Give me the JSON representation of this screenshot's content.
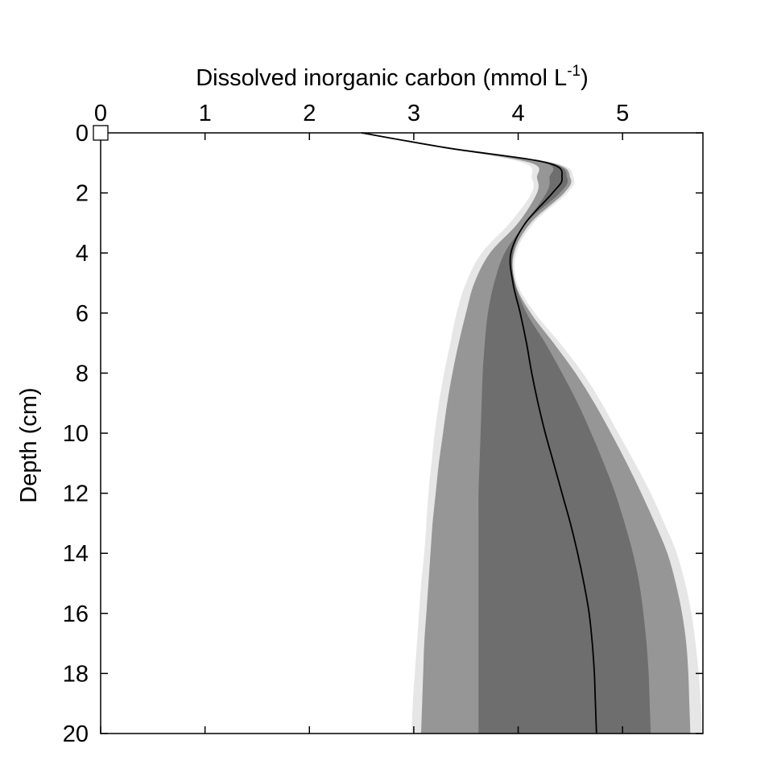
{
  "chart_data": {
    "type": "area",
    "xlabel_main": "Dissolved inorganic carbon  (mmol L",
    "xlabel_sup": "-1",
    "xlabel_close": ")",
    "ylabel": "Depth (cm)",
    "xlim": [
      0,
      5.77
    ],
    "ylim": [
      0,
      20
    ],
    "x_axis_position": "top",
    "y_inverted": true,
    "grid": false,
    "x_ticks": [
      0,
      1,
      2,
      3,
      4,
      5
    ],
    "x_tick_labels": [
      "0",
      "1",
      "2",
      "3",
      "4",
      "5"
    ],
    "y_ticks": [
      0,
      2,
      4,
      6,
      8,
      10,
      12,
      14,
      16,
      18,
      20
    ],
    "y_tick_labels": [
      "0",
      "2",
      "4",
      "6",
      "8",
      "10",
      "12",
      "14",
      "16",
      "18",
      "20"
    ],
    "depth": [
      0,
      0.5,
      1.0,
      1.5,
      2.0,
      3.0,
      4.0,
      5.0,
      6.0,
      7.0,
      8.0,
      9.0,
      10.0,
      11.0,
      12.0,
      13.0,
      14.0,
      15.0,
      16.0,
      17.0,
      18.0,
      19.0,
      20.0
    ],
    "bands": [
      {
        "color": "#e6e6e6",
        "lower": [
          2.48,
          3.3,
          4.05,
          4.13,
          4.13,
          3.92,
          3.65,
          3.5,
          3.41,
          3.35,
          3.29,
          3.24,
          3.2,
          3.17,
          3.14,
          3.12,
          3.1,
          3.07,
          3.05,
          3.03,
          3.01,
          2.99,
          2.98
        ],
        "upper": [
          2.52,
          3.35,
          4.35,
          4.53,
          4.47,
          4.15,
          3.98,
          3.99,
          4.16,
          4.4,
          4.62,
          4.8,
          4.96,
          5.12,
          5.27,
          5.4,
          5.52,
          5.6,
          5.66,
          5.7,
          5.73,
          5.75,
          5.76
        ]
      },
      {
        "color": "#969696",
        "lower": [
          2.48,
          3.3,
          4.12,
          4.18,
          4.18,
          4.0,
          3.73,
          3.58,
          3.5,
          3.43,
          3.37,
          3.32,
          3.28,
          3.24,
          3.21,
          3.18,
          3.16,
          3.14,
          3.12,
          3.1,
          3.09,
          3.08,
          3.07
        ],
        "upper": [
          2.51,
          3.33,
          4.32,
          4.5,
          4.44,
          4.12,
          3.96,
          3.97,
          4.12,
          4.34,
          4.55,
          4.73,
          4.89,
          5.04,
          5.18,
          5.31,
          5.43,
          5.51,
          5.57,
          5.61,
          5.63,
          5.64,
          5.65
        ]
      },
      {
        "color": "#6e6e6e",
        "lower": [
          2.49,
          3.31,
          4.25,
          4.3,
          4.27,
          4.07,
          3.87,
          3.77,
          3.71,
          3.68,
          3.66,
          3.65,
          3.64,
          3.63,
          3.62,
          3.62,
          3.62,
          3.62,
          3.62,
          3.62,
          3.62,
          3.62,
          3.62
        ],
        "upper": [
          2.51,
          3.32,
          4.3,
          4.47,
          4.4,
          4.08,
          3.95,
          3.97,
          4.08,
          4.26,
          4.42,
          4.57,
          4.7,
          4.82,
          4.93,
          5.02,
          5.1,
          5.16,
          5.2,
          5.23,
          5.25,
          5.26,
          5.27
        ]
      }
    ],
    "series": [
      {
        "color": "#000000",
        "values": [
          2.5,
          3.32,
          4.28,
          4.42,
          4.33,
          4.07,
          3.93,
          3.95,
          4.02,
          4.08,
          4.13,
          4.19,
          4.26,
          4.34,
          4.42,
          4.5,
          4.57,
          4.63,
          4.68,
          4.71,
          4.73,
          4.74,
          4.75
        ]
      }
    ],
    "marker": {
      "shape": "square",
      "x": 0,
      "y": 0
    }
  }
}
